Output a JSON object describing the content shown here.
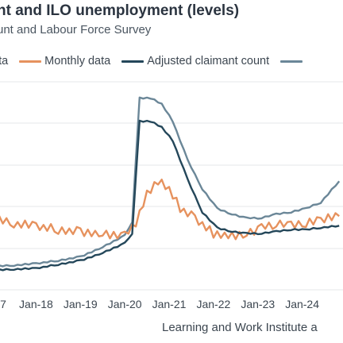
{
  "header": {
    "title": "nt and ILO unemployment (levels)",
    "subtitle": "unt and Labour Force Survey"
  },
  "source": "Learning and Work Institute a",
  "chart_data": {
    "type": "line",
    "title": "nt and ILO unemployment (levels)",
    "subtitle": "unt and Labour Force Survey",
    "xlabel": "",
    "ylabel": "",
    "x_tick_labels": [
      "7",
      "Jan-18",
      "Jan-19",
      "Jan-20",
      "Jan-21",
      "Jan-22",
      "Jan-23",
      "Jan-24"
    ],
    "x_range": [
      "2017-01",
      "2024-11"
    ],
    "grid": "horizontal",
    "legend_placement": "top",
    "series": [
      {
        "key": "quarterly",
        "name": "ata",
        "color": "#6b8798",
        "points": [
          [
            "2017-01",
            0
          ],
          [
            "2017-07",
            0.5
          ],
          [
            "2018-01",
            1.5
          ],
          [
            "2018-07",
            3
          ],
          [
            "2019-01",
            5
          ],
          [
            "2019-07",
            10
          ],
          [
            "2020-01",
            16
          ],
          [
            "2020-03",
            23
          ],
          [
            "2020-05",
            87
          ],
          [
            "2020-08",
            87
          ],
          [
            "2020-11",
            84
          ],
          [
            "2021-02",
            75
          ],
          [
            "2021-06",
            55
          ],
          [
            "2021-10",
            40
          ],
          [
            "2022-02",
            30
          ],
          [
            "2022-06",
            27
          ],
          [
            "2022-10",
            25
          ],
          [
            "2023-02",
            25
          ],
          [
            "2023-06",
            27
          ],
          [
            "2023-10",
            28
          ],
          [
            "2024-02",
            30
          ],
          [
            "2024-06",
            33
          ],
          [
            "2024-11",
            44
          ]
        ]
      },
      {
        "key": "monthly",
        "name": "Monthly data",
        "color": "#e6925e",
        "points": [
          [
            "2017-01",
            25
          ],
          [
            "2017-07",
            22
          ],
          [
            "2018-01",
            21
          ],
          [
            "2018-07",
            19
          ],
          [
            "2019-01",
            18
          ],
          [
            "2019-07",
            17
          ],
          [
            "2020-01",
            16
          ],
          [
            "2020-04",
            22
          ],
          [
            "2020-07",
            37
          ],
          [
            "2020-10",
            44
          ],
          [
            "2021-01",
            40
          ],
          [
            "2021-04",
            30
          ],
          [
            "2021-08",
            25
          ],
          [
            "2022-01",
            17
          ],
          [
            "2022-06",
            16
          ],
          [
            "2022-10",
            17
          ],
          [
            "2023-02",
            20
          ],
          [
            "2023-06",
            22
          ],
          [
            "2023-10",
            21
          ],
          [
            "2024-02",
            22
          ],
          [
            "2024-06",
            24
          ],
          [
            "2024-11",
            26
          ]
        ]
      },
      {
        "key": "adjusted",
        "name": "Adjusted claimant count",
        "color": "#24475a",
        "points": [
          [
            "2017-01",
            -2
          ],
          [
            "2017-07",
            -1.5
          ],
          [
            "2018-01",
            -1
          ],
          [
            "2018-07",
            1
          ],
          [
            "2019-01",
            3
          ],
          [
            "2019-07",
            7
          ],
          [
            "2020-01",
            12
          ],
          [
            "2020-03",
            17
          ],
          [
            "2020-05",
            75
          ],
          [
            "2020-08",
            75
          ],
          [
            "2020-11",
            72
          ],
          [
            "2021-02",
            65
          ],
          [
            "2021-06",
            45
          ],
          [
            "2021-10",
            28
          ],
          [
            "2022-02",
            20
          ],
          [
            "2022-06",
            18
          ],
          [
            "2022-10",
            17
          ],
          [
            "2023-02",
            17
          ],
          [
            "2023-06",
            18
          ],
          [
            "2023-10",
            19
          ],
          [
            "2024-02",
            19
          ],
          [
            "2024-06",
            20
          ],
          [
            "2024-11",
            21
          ]
        ]
      }
    ]
  }
}
